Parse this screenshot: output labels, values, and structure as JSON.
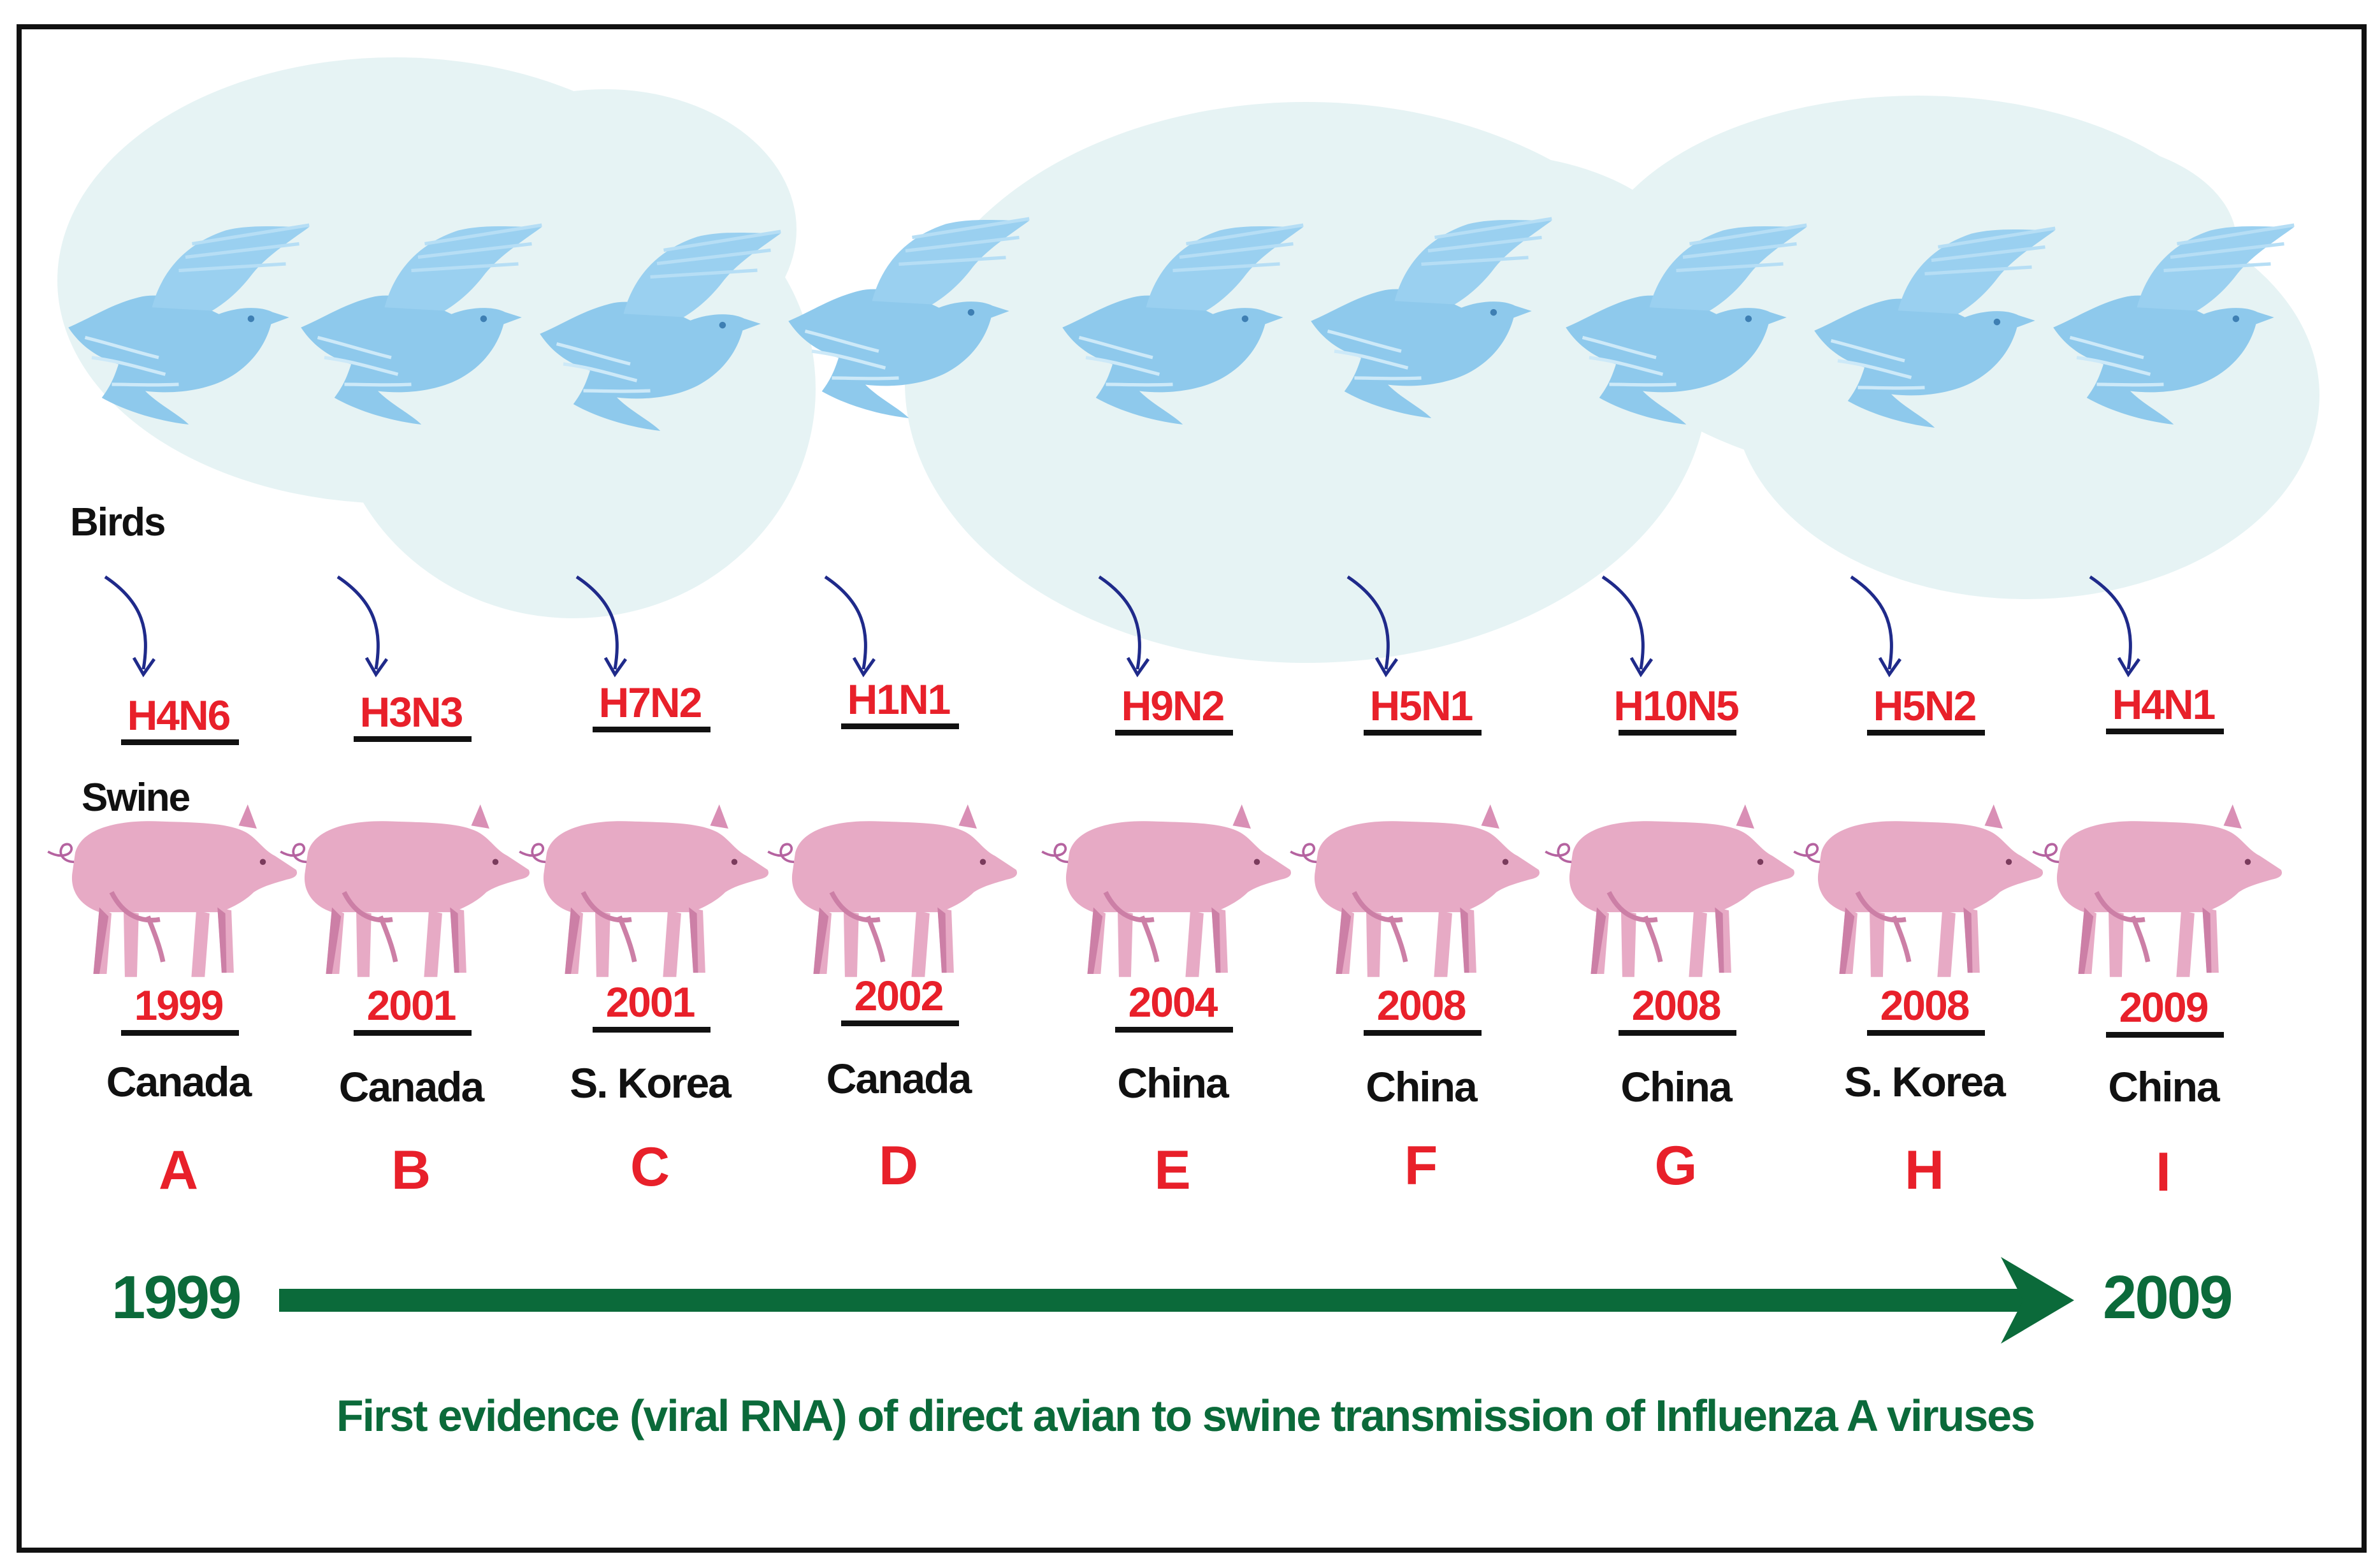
{
  "labels": {
    "birds": "Birds",
    "swine": "Swine"
  },
  "events": [
    {
      "subtype": "H4N6",
      "year": "1999",
      "country": "Canada",
      "letter": "A"
    },
    {
      "subtype": "H3N3",
      "year": "2001",
      "country": "Canada",
      "letter": "B"
    },
    {
      "subtype": "H7N2",
      "year": "2001",
      "country": "S. Korea",
      "letter": "C"
    },
    {
      "subtype": "H1N1",
      "year": "2002",
      "country": "Canada",
      "letter": "D"
    },
    {
      "subtype": "H9N2",
      "year": "2004",
      "country": "China",
      "letter": "E"
    },
    {
      "subtype": "H5N1",
      "year": "2008",
      "country": "China",
      "letter": "F"
    },
    {
      "subtype": "H10N5",
      "year": "2008",
      "country": "China",
      "letter": "G"
    },
    {
      "subtype": "H5N2",
      "year": "2008",
      "country": "S. Korea",
      "letter": "H"
    },
    {
      "subtype": "H4N1",
      "year": "2009",
      "country": "China",
      "letter": "I"
    }
  ],
  "timeline": {
    "start": "1999",
    "end": "2009",
    "caption": "First evidence (viral RNA) of direct avian to swine transmission of Influenza A viruses"
  },
  "colors": {
    "red": "#e8202a",
    "green": "#0b6a3a",
    "navy": "#1f2a8a",
    "bird": "#8ec9ec",
    "bird_dark": "#6fb3e0",
    "pig": "#e7aac5",
    "pig_dark": "#cc7fa6",
    "cloud": "#e6f3f4",
    "black": "#111111"
  },
  "icons": {
    "bird": "dove-icon",
    "pig": "pig-icon",
    "arrow": "curved-arrow-icon"
  }
}
